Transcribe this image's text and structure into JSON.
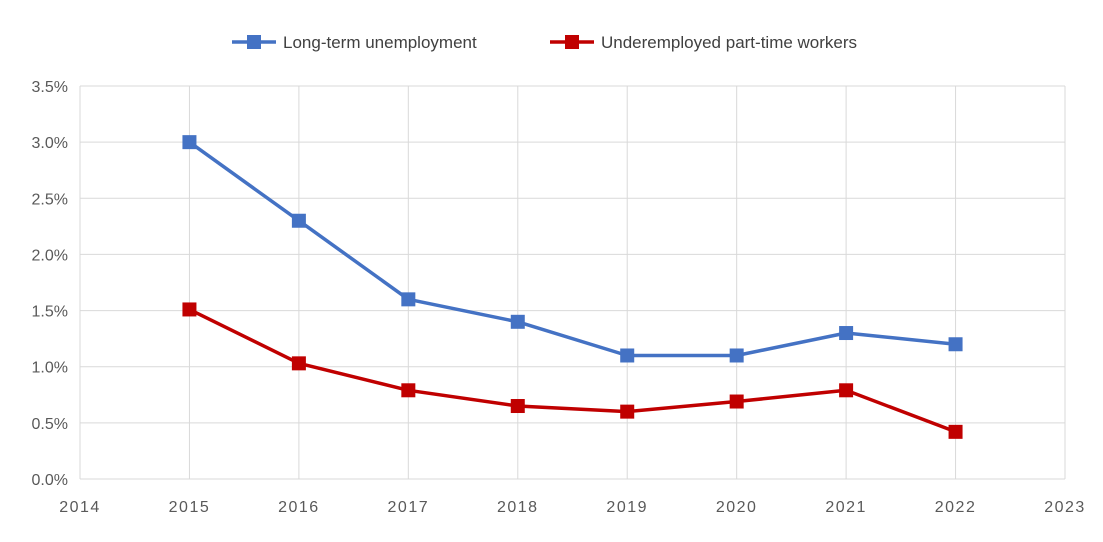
{
  "chart_data": {
    "type": "line",
    "title": "",
    "xlabel": "",
    "ylabel": "",
    "xlim": [
      2014,
      2023
    ],
    "ylim": [
      0,
      0.035
    ],
    "x_ticks": [
      "2014",
      "2015",
      "2016",
      "2017",
      "2018",
      "2019",
      "2020",
      "2021",
      "2022",
      "2023"
    ],
    "y_ticks": [
      "0.0%",
      "0.5%",
      "1.0%",
      "1.5%",
      "2.0%",
      "2.5%",
      "3.0%",
      "3.5%"
    ],
    "grid": true,
    "legend_position": "top",
    "series": [
      {
        "name": "Long-term unemployment",
        "color": "#4472C4",
        "marker": "square",
        "x": [
          2015,
          2016,
          2017,
          2018,
          2019,
          2020,
          2021,
          2022
        ],
        "values": [
          0.03,
          0.023,
          0.016,
          0.014,
          0.011,
          0.011,
          0.013,
          0.012
        ]
      },
      {
        "name": "Underemployed part-time workers",
        "color": "#C00000",
        "marker": "square",
        "x": [
          2015,
          2016,
          2017,
          2018,
          2019,
          2020,
          2021,
          2022
        ],
        "values": [
          0.0151,
          0.0103,
          0.0079,
          0.0065,
          0.006,
          0.0069,
          0.0079,
          0.0042
        ]
      }
    ]
  }
}
